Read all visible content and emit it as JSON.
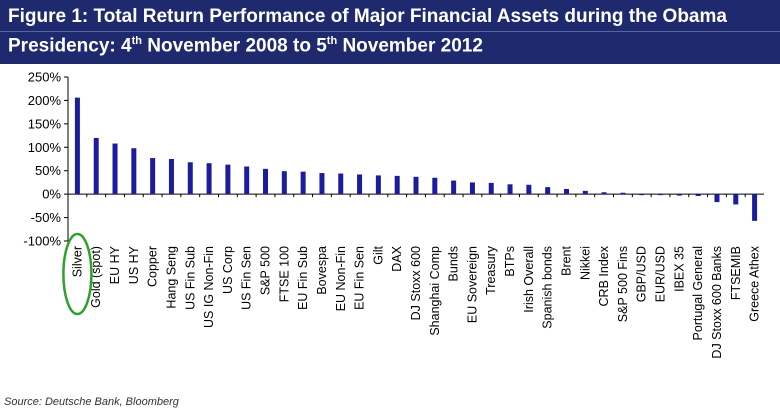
{
  "title": {
    "line1": "Figure 1: Total Return Performance of Major Financial Assets during the Obama",
    "line2_a": "Presidency: 4",
    "line2_sup1": "th",
    "line2_b": " November 2008 to 5",
    "line2_sup2": "th",
    "line2_c": " November 2012"
  },
  "source": "Source: Deutsche Bank, Bloomberg",
  "colors": {
    "bar": "#1c1c9c",
    "title_bg": "#1f2a6e",
    "highlight": "#2ea02e"
  },
  "chart_data": {
    "type": "bar",
    "ylim": [
      -100,
      250
    ],
    "yticks": [
      -100,
      -50,
      0,
      50,
      100,
      150,
      200,
      250
    ],
    "ytick_labels": [
      "-100%",
      "-50%",
      "0%",
      "50%",
      "100%",
      "150%",
      "200%",
      "250%"
    ],
    "grid": false,
    "highlighted_category": "Silver",
    "categories": [
      "Silver",
      "Gold (spot)",
      "EU HY",
      "US HY",
      "Copper",
      "Hang Seng",
      "US Fin Sub",
      "US IG Non-Fin",
      "US Corp",
      "US Fin Sen",
      "S&P 500",
      "FTSE 100",
      "EU Fin Sub",
      "Bovespa",
      "EU Non-Fin",
      "EU Fin Sen",
      "Gilt",
      "DAX",
      "DJ Stoxx 600",
      "Shanghai Comp",
      "Bunds",
      "EU Sovereign",
      "Treasury",
      "BTPs",
      "Irish Overall",
      "Spanish bonds",
      "Brent",
      "Nikkei",
      "CRB Index",
      "S&P 500 Fins",
      "GBP/USD",
      "EUR/USD",
      "IBEX 35",
      "Portugal General",
      "DJ Stoxx 600 Banks",
      "FTSEMIB",
      "Greece Athex"
    ],
    "values": [
      206,
      120,
      108,
      98,
      77,
      75,
      68,
      66,
      63,
      59,
      54,
      49,
      48,
      45,
      44,
      42,
      40,
      39,
      37,
      35,
      29,
      25,
      24,
      21,
      20,
      15,
      11,
      7,
      4,
      3,
      -1,
      -2,
      -3,
      -4,
      -17,
      -22,
      -57
    ]
  }
}
